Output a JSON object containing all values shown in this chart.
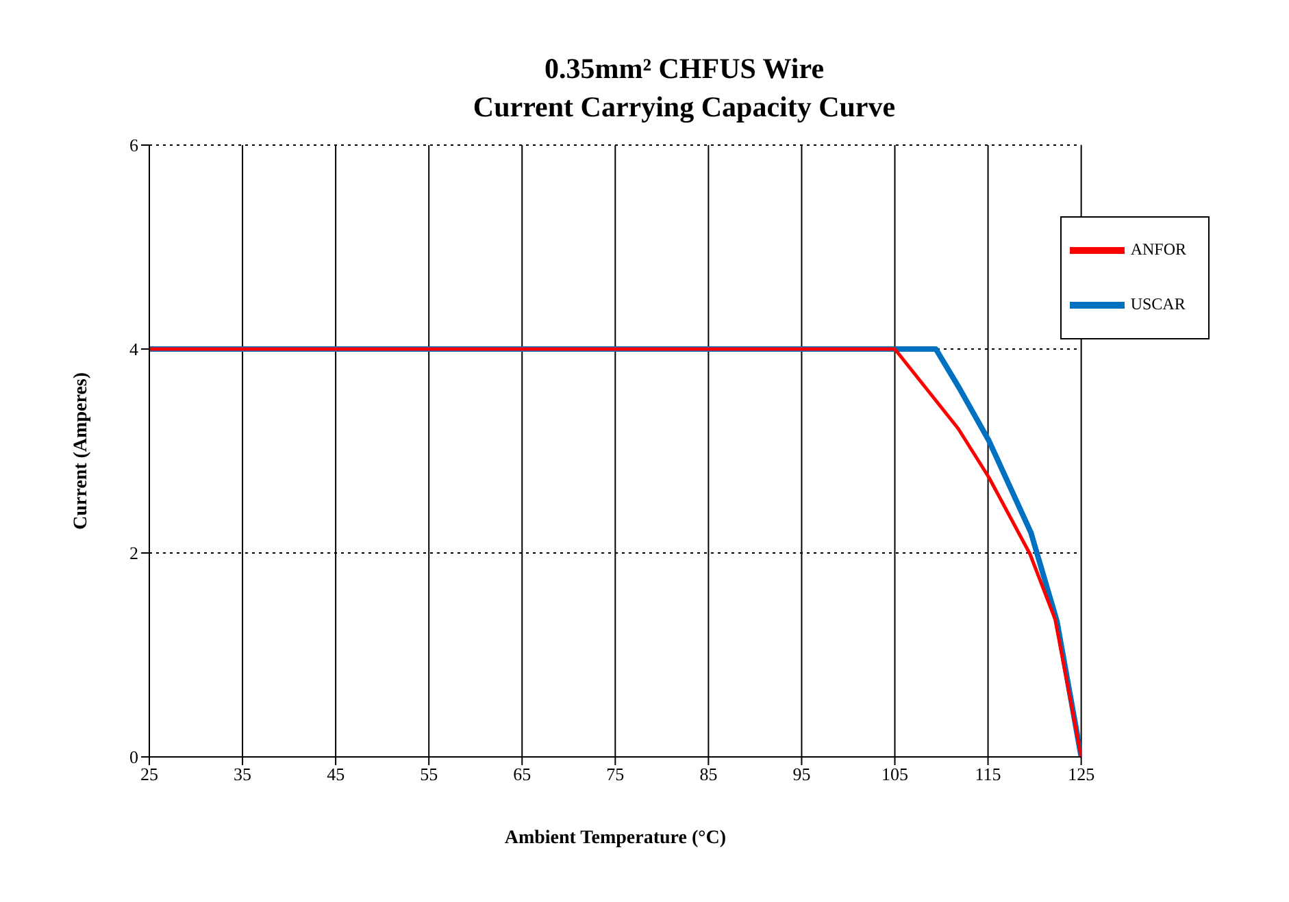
{
  "chart_data": {
    "type": "line",
    "title": "0.35mm² CHFUS Wire\nCurrent Carrying Capacity Curve",
    "xlabel": "Ambient  Temperature  (°C)",
    "ylabel": "Current (Amperes)",
    "xlim": [
      25,
      125
    ],
    "xticks": [
      25,
      35,
      45,
      55,
      65,
      75,
      85,
      95,
      105,
      115,
      125
    ],
    "ylim": [
      0,
      6
    ],
    "yticks": [
      0,
      2,
      4,
      6
    ],
    "grid": true,
    "legend": "top right",
    "marker": "none",
    "line_style": "solid",
    "series": [
      {
        "name": "ANFOR",
        "color": "#ff0000",
        "x": [
          25,
          105,
          111.8,
          115.1,
          119.5,
          122.2,
          125
        ],
        "values": [
          4,
          4,
          3.22,
          2.74,
          1.99,
          1.35,
          0
        ]
      },
      {
        "name": "USCAR",
        "color": "#0070c0",
        "x": [
          25,
          109.4,
          111.9,
          115.1,
          119.6,
          122.4,
          125
        ],
        "values": [
          4,
          4,
          3.62,
          3.1,
          2.2,
          1.33,
          0
        ]
      }
    ]
  }
}
